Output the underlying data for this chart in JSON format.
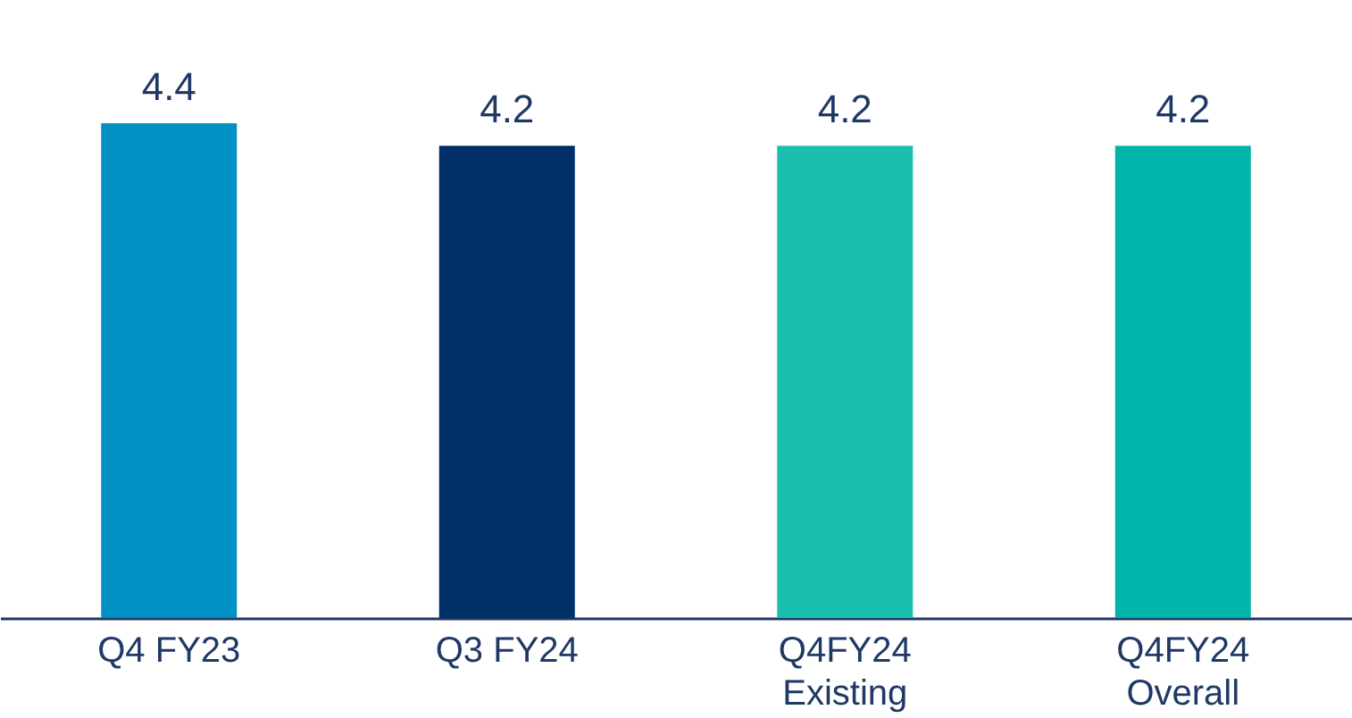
{
  "chart_data": {
    "type": "bar",
    "categories": [
      "Q4 FY23",
      "Q3 FY24",
      "Q4FY24\nExisting",
      "Q4FY24\nOverall"
    ],
    "values": [
      4.4,
      4.2,
      4.2,
      4.2
    ],
    "colors": [
      "#0090c4",
      "#003068",
      "#1bbfae",
      "#00b4aa"
    ],
    "data_labels": true
  }
}
